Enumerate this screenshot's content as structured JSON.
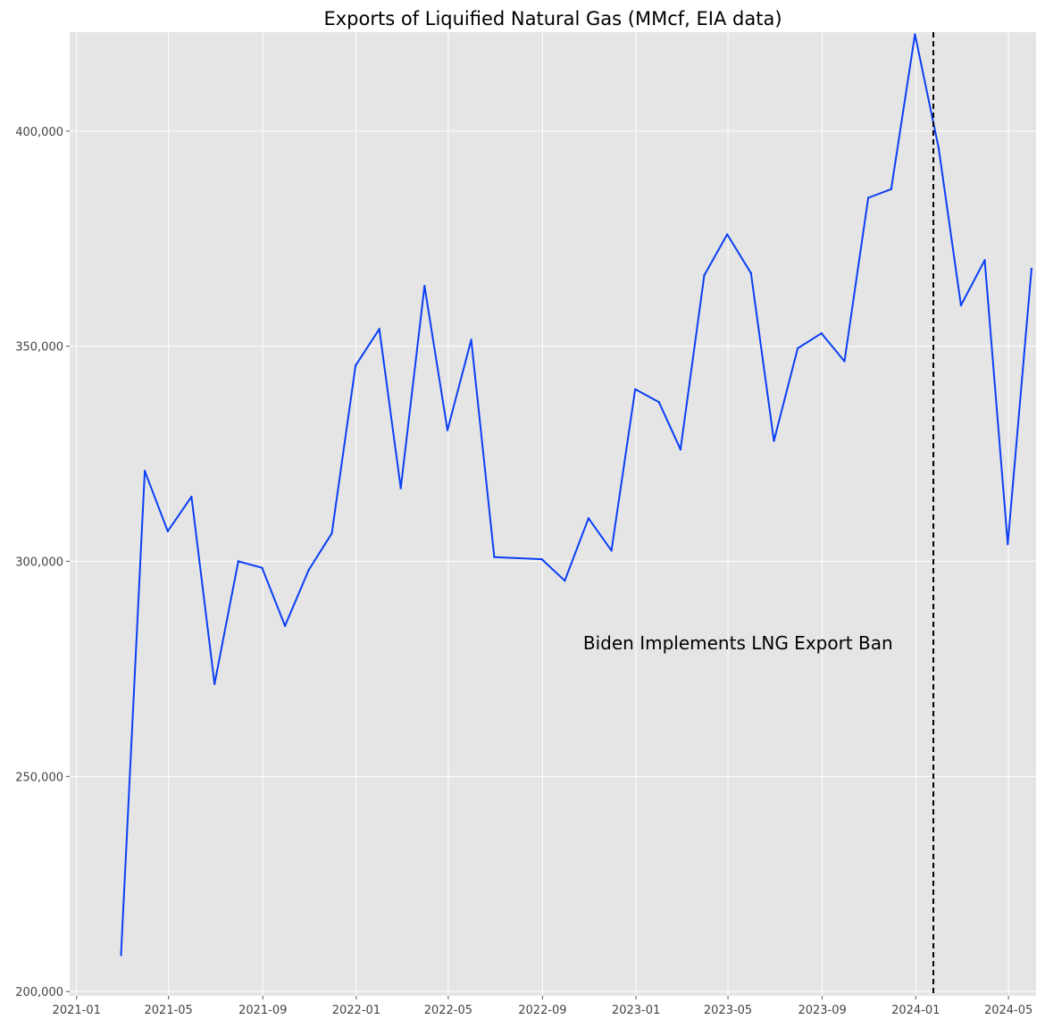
{
  "chart_data": {
    "type": "line",
    "title": "Exports of Liquified Natural Gas (MMcf, EIA data)",
    "xlabel": "",
    "ylabel": "",
    "x_ticks": [
      "2021-01",
      "2021-05",
      "2021-09",
      "2022-01",
      "2022-05",
      "2022-09",
      "2023-01",
      "2023-05",
      "2023-09",
      "2024-01",
      "2024-05"
    ],
    "y_ticks": [
      200000,
      250000,
      300000,
      350000,
      400000
    ],
    "y_tick_labels": [
      "200,000",
      "250,000",
      "300,000",
      "350,000",
      "400,000"
    ],
    "ylim": [
      199000,
      423000
    ],
    "xlim": [
      "2020-12-23",
      "2024-06-06"
    ],
    "grid": true,
    "background": "#e5e5e5",
    "series": [
      {
        "color": "#0a3ff5",
        "x": [
          "2021-02-28",
          "2021-03-31",
          "2021-04-30",
          "2021-05-31",
          "2021-06-30",
          "2021-07-31",
          "2021-08-31",
          "2021-09-30",
          "2021-10-31",
          "2021-11-30",
          "2021-12-31",
          "2022-01-31",
          "2022-02-28",
          "2022-03-31",
          "2022-04-30",
          "2022-05-31",
          "2022-06-30",
          "2022-08-31",
          "2022-09-30",
          "2022-10-31",
          "2022-11-30",
          "2022-12-31",
          "2023-01-31",
          "2023-02-28",
          "2023-03-31",
          "2023-04-30",
          "2023-05-31",
          "2023-06-30",
          "2023-07-31",
          "2023-08-31",
          "2023-09-30",
          "2023-10-31",
          "2023-11-30",
          "2023-12-31",
          "2024-01-31",
          "2024-02-29",
          "2024-03-31",
          "2024-04-30",
          "2024-05-31"
        ],
        "values": [
          208500,
          321000,
          307000,
          315000,
          271500,
          300000,
          298500,
          285000,
          298000,
          306500,
          345500,
          354000,
          317000,
          364000,
          330500,
          351500,
          301000,
          300500,
          295500,
          310000,
          302500,
          340000,
          337000,
          326000,
          366500,
          376000,
          367000,
          328000,
          349500,
          353000,
          346500,
          384500,
          386500,
          422500,
          396000,
          359500,
          370000,
          304000,
          368000
        ]
      }
    ],
    "vline": {
      "x": "2024-01-24",
      "style": "dashed",
      "color": "#000000"
    },
    "annotation": {
      "text": "Biden Implements LNG Export Ban",
      "x": "2022-10-31",
      "y": 281000
    }
  }
}
